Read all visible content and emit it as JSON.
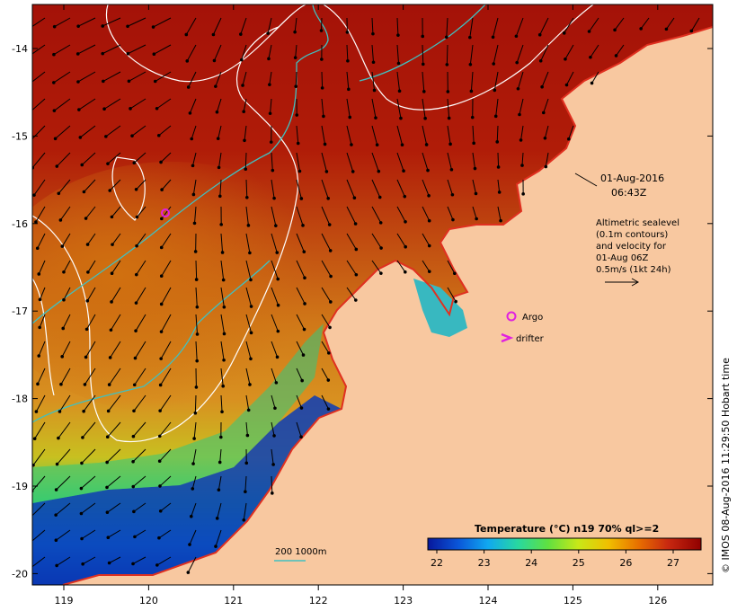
{
  "map": {
    "lon_ticks": [
      "119",
      "120",
      "121",
      "122",
      "123",
      "124",
      "125",
      "126"
    ],
    "lat_ticks": [
      "-14",
      "-15",
      "-16",
      "-17",
      "-18",
      "-19",
      "-20"
    ],
    "colors": {
      "land": "#f8c8a0",
      "sea_warm": "#a01208",
      "coast": "#e03020",
      "argo": "#e020e0",
      "drifter": "#e020e0",
      "contour_white": "#ffffff",
      "bathy": "#40c0c0"
    }
  },
  "timestamp": {
    "date": "01-Aug-2016",
    "time": "06:43Z"
  },
  "altimetry": {
    "line1": "Altimetric sealevel",
    "line2": "(0.1m contours)",
    "line3": "and velocity for",
    "line4": "01-Aug 06Z",
    "line5": "0.5m/s (1kt 24h)"
  },
  "legend": {
    "argo": "Argo",
    "drifter": "drifter"
  },
  "bathy_legend": {
    "label": "200  1000m"
  },
  "colorbar": {
    "title": "Temperature (°C) n19 70% ql>=2",
    "ticks": [
      "22",
      "23",
      "24",
      "25",
      "26",
      "27"
    ],
    "stops": [
      "#08189c",
      "#0a55d8",
      "#10a8f0",
      "#28d8a0",
      "#60e040",
      "#c8e818",
      "#f0c000",
      "#e87000",
      "#c82810",
      "#900000"
    ]
  },
  "credit": "© IMOS 08-Aug-2016 11:29:50 Hobart time"
}
